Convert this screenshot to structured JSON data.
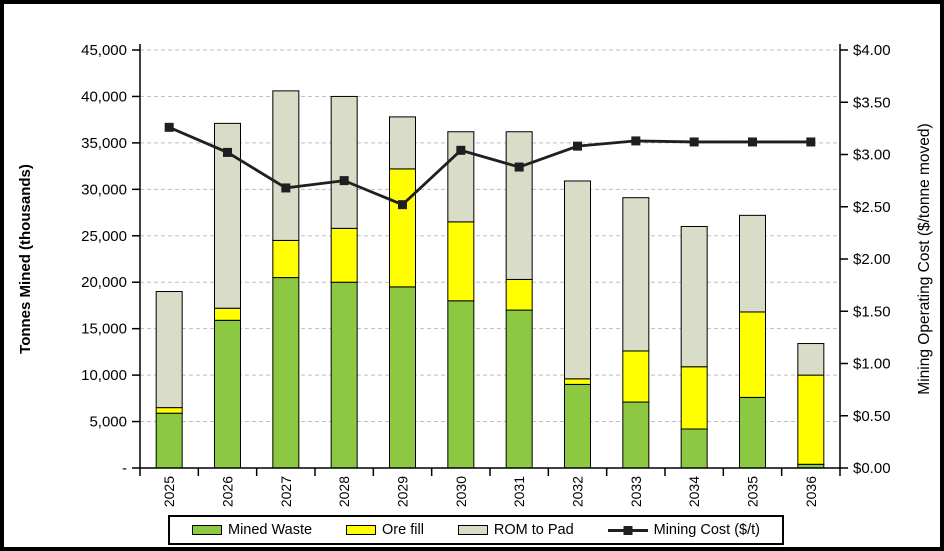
{
  "window": {
    "background": "#ffffff",
    "frame_border": "#000000"
  },
  "chart_data": {
    "type": "bar",
    "subtype": "stacked-columns-with-line-overlay",
    "categories": [
      "2025",
      "2026",
      "2027",
      "2028",
      "2029",
      "2030",
      "2031",
      "2032",
      "2033",
      "2034",
      "2035",
      "2036"
    ],
    "series": [
      {
        "name": "Mined Waste",
        "type": "bar",
        "axis": "left",
        "color": "#8cc841",
        "values": [
          5900,
          15900,
          20500,
          20000,
          19500,
          18000,
          17000,
          9000,
          7100,
          4200,
          7600,
          400
        ]
      },
      {
        "name": "Ore fill",
        "type": "bar",
        "axis": "left",
        "color": "#ffff00",
        "values": [
          600,
          1300,
          4000,
          5800,
          12700,
          8500,
          3300,
          600,
          5500,
          6700,
          9200,
          9600
        ]
      },
      {
        "name": "ROM to Pad",
        "type": "bar",
        "axis": "left",
        "color": "#d9dcc6",
        "values": [
          12500,
          19900,
          16100,
          14200,
          5600,
          9700,
          15900,
          21300,
          16500,
          15100,
          10400,
          3400
        ]
      },
      {
        "name": "Mining Cost ($/t)",
        "type": "line",
        "axis": "right",
        "color": "#1f1f1f",
        "values": [
          3.26,
          3.02,
          2.68,
          2.75,
          2.52,
          3.04,
          2.88,
          3.08,
          3.13,
          3.12,
          3.12,
          3.12
        ]
      }
    ],
    "bar_totals": [
      19000,
      37100,
      40600,
      40000,
      37800,
      36200,
      36200,
      30900,
      29100,
      26000,
      27200,
      13400
    ],
    "title": "",
    "xlabel": "",
    "ylabel": "Tonnes Mined (thousands)",
    "ylabel_right": "Mining Operating Cost ($/tonne moved)",
    "ylim": [
      0,
      45000
    ],
    "ytick_step": 5000,
    "ytick_zero_label": "-",
    "ylim_right": [
      0,
      4
    ],
    "ytick_step_right": 0.5,
    "ytick_format_right": "$0.00",
    "grid": "horizontal-dashed",
    "legend_position": "bottom",
    "legend": [
      "Mined Waste",
      "Ore fill",
      "ROM to Pad",
      "Mining Cost ($/t)"
    ]
  },
  "colors": {
    "grid": "#bfbfbf",
    "axis": "#000000",
    "bar_border": "#000000"
  }
}
